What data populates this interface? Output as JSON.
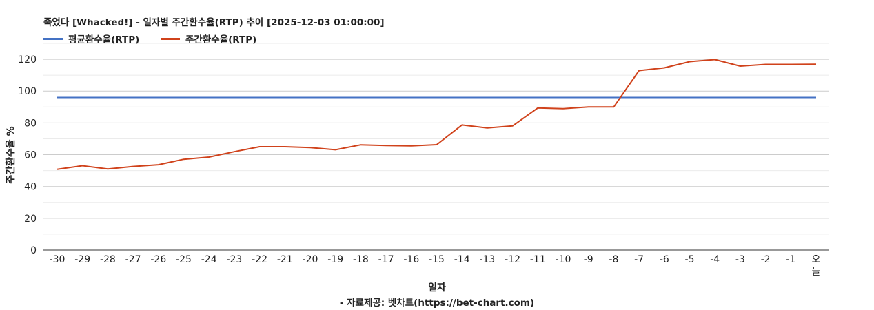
{
  "chart_data": {
    "type": "line",
    "title": "죽었다 [Whacked!] - 일자별 주간환수율(RTP) 추이 [2025-12-03 01:00:00]",
    "xlabel": "일자",
    "ylabel": "주간환수율 %",
    "source_note": "- 자료제공: 벳차트(https://bet-chart.com)",
    "categories": [
      "-30",
      "-29",
      "-28",
      "-27",
      "-26",
      "-25",
      "-24",
      "-23",
      "-22",
      "-21",
      "-20",
      "-19",
      "-18",
      "-17",
      "-16",
      "-15",
      "-14",
      "-13",
      "-12",
      "-11",
      "-10",
      "-9",
      "-8",
      "-7",
      "-6",
      "-5",
      "-4",
      "-3",
      "-2",
      "-1",
      "오늘"
    ],
    "ylim": [
      0,
      130
    ],
    "yticks": [
      0,
      20,
      40,
      60,
      80,
      100,
      120
    ],
    "grid": true,
    "legend_position": "top-left",
    "series": [
      {
        "name": "평균환수율(RTP)",
        "color": "#4472c4",
        "values": [
          96,
          96,
          96,
          96,
          96,
          96,
          96,
          96,
          96,
          96,
          96,
          96,
          96,
          96,
          96,
          96,
          96,
          96,
          96,
          96,
          96,
          96,
          96,
          96,
          96,
          96,
          96,
          96,
          96,
          96,
          96
        ]
      },
      {
        "name": "주간환수율(RTP)",
        "color": "#d0421b",
        "values": [
          50.8,
          53.1,
          51.0,
          52.6,
          53.7,
          57.1,
          58.5,
          61.9,
          65.0,
          65.0,
          64.5,
          63.1,
          66.2,
          65.8,
          65.5,
          66.3,
          78.7,
          76.8,
          78.1,
          89.4,
          88.9,
          90.0,
          90.0,
          112.9,
          114.6,
          118.5,
          119.8,
          115.7,
          116.8,
          116.8,
          116.9
        ]
      }
    ]
  }
}
